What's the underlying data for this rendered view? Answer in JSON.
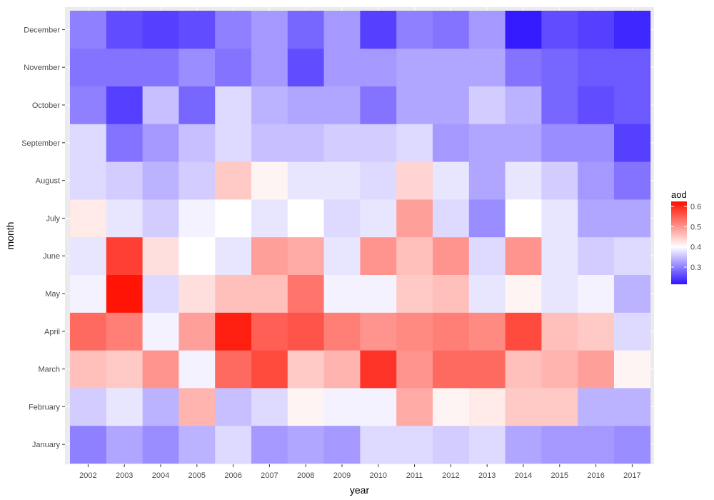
{
  "chart_data": {
    "type": "heatmap",
    "xlabel": "year",
    "ylabel": "month",
    "x": [
      "2002",
      "2003",
      "2004",
      "2005",
      "2006",
      "2007",
      "2008",
      "2009",
      "2010",
      "2011",
      "2012",
      "2013",
      "2014",
      "2015",
      "2016",
      "2017"
    ],
    "y": [
      "January",
      "February",
      "March",
      "April",
      "May",
      "June",
      "July",
      "August",
      "September",
      "October",
      "November",
      "December"
    ],
    "values": [
      [
        0.3,
        0.33,
        0.31,
        0.34,
        0.37,
        0.32,
        0.33,
        0.32,
        0.37,
        0.37,
        0.36,
        0.37,
        0.33,
        0.32,
        0.32,
        0.31
      ],
      [
        0.36,
        0.38,
        0.34,
        0.47,
        0.35,
        0.37,
        0.41,
        0.39,
        0.39,
        0.48,
        0.41,
        0.42,
        0.45,
        0.45,
        0.34,
        0.34
      ],
      [
        0.46,
        0.45,
        0.5,
        0.39,
        0.54,
        0.57,
        0.45,
        0.47,
        0.59,
        0.5,
        0.54,
        0.54,
        0.46,
        0.47,
        0.49,
        0.41
      ],
      [
        0.54,
        0.52,
        0.39,
        0.49,
        0.61,
        0.55,
        0.56,
        0.52,
        0.5,
        0.51,
        0.52,
        0.51,
        0.57,
        0.46,
        0.45,
        0.37
      ],
      [
        0.39,
        0.62,
        0.37,
        0.43,
        0.46,
        0.46,
        0.53,
        0.39,
        0.39,
        0.45,
        0.46,
        0.38,
        0.41,
        0.38,
        0.39,
        0.34
      ],
      [
        0.38,
        0.58,
        0.43,
        0.4,
        0.38,
        0.49,
        0.48,
        0.38,
        0.5,
        0.46,
        0.5,
        0.37,
        0.5,
        0.38,
        0.36,
        0.37
      ],
      [
        0.42,
        0.38,
        0.36,
        0.39,
        0.4,
        0.38,
        0.4,
        0.37,
        0.38,
        0.49,
        0.37,
        0.31,
        0.4,
        0.38,
        0.33,
        0.33
      ],
      [
        0.37,
        0.36,
        0.34,
        0.36,
        0.45,
        0.41,
        0.38,
        0.38,
        0.37,
        0.44,
        0.38,
        0.33,
        0.38,
        0.36,
        0.32,
        0.29
      ],
      [
        0.37,
        0.29,
        0.32,
        0.35,
        0.37,
        0.35,
        0.35,
        0.36,
        0.36,
        0.37,
        0.32,
        0.33,
        0.33,
        0.31,
        0.31,
        0.25
      ],
      [
        0.3,
        0.25,
        0.35,
        0.28,
        0.37,
        0.34,
        0.33,
        0.33,
        0.29,
        0.33,
        0.33,
        0.36,
        0.34,
        0.28,
        0.26,
        0.27
      ],
      [
        0.29,
        0.29,
        0.29,
        0.31,
        0.29,
        0.32,
        0.26,
        0.32,
        0.32,
        0.33,
        0.33,
        0.33,
        0.29,
        0.28,
        0.27,
        0.27
      ],
      [
        0.3,
        0.26,
        0.25,
        0.26,
        0.3,
        0.32,
        0.28,
        0.32,
        0.25,
        0.3,
        0.29,
        0.32,
        0.22,
        0.26,
        0.25,
        0.23
      ]
    ],
    "legend": {
      "title": "aod",
      "placement": "right",
      "breaks": [
        0.3,
        0.4,
        0.5,
        0.6
      ],
      "labels": [
        "0.3",
        "0.4",
        "0.5",
        "0.6"
      ],
      "range": [
        0.215,
        0.625
      ],
      "midpoint": 0.4
    },
    "colors": {
      "low": "#2e14ff",
      "mid": "#ffffff",
      "high": "#ff0f00",
      "panel_background": "#ebebeb",
      "grid": "#ffffff"
    },
    "grid": true
  }
}
